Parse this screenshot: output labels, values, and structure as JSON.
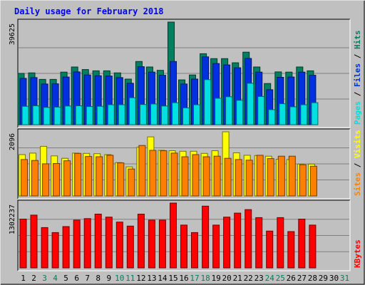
{
  "chart_data": {
    "type": "bar",
    "title": "Daily usage for February 2018",
    "categories": [
      "1",
      "2",
      "3",
      "4",
      "5",
      "6",
      "7",
      "8",
      "9",
      "10",
      "11",
      "12",
      "13",
      "14",
      "15",
      "16",
      "17",
      "18",
      "19",
      "20",
      "21",
      "22",
      "23",
      "24",
      "25",
      "26",
      "27",
      "28",
      "29",
      "30",
      "31"
    ],
    "weekend_days": [
      3,
      4,
      10,
      11,
      17,
      18,
      24,
      25,
      31
    ],
    "panels": [
      {
        "id": "pages_files_hits",
        "max_label": "39625",
        "ylim": [
          0,
          39625
        ],
        "right_label": [
          {
            "text": "Pages",
            "color": "#00e0e0"
          },
          {
            "text": " / ",
            "color": "#000000"
          },
          {
            "text": "Files",
            "color": "#0030e0"
          },
          {
            "text": " / ",
            "color": "#000000"
          },
          {
            "text": "Hits",
            "color": "#008060"
          }
        ],
        "series": [
          {
            "name": "Hits",
            "color": "#008060",
            "values": [
              19800,
              20000,
              17500,
              17500,
              20300,
              22300,
              21300,
              20800,
              20800,
              20000,
              17600,
              24400,
              22300,
              21000,
              39625,
              17300,
              19200,
              27400,
              25500,
              25500,
              23900,
              28000,
              22300,
              15900,
              20400,
              20300,
              22300,
              20800,
              0,
              0,
              0
            ]
          },
          {
            "name": "Files",
            "color": "#0030e0",
            "values": [
              17900,
              18200,
              15700,
              15800,
              18400,
              20400,
              19200,
              18900,
              18800,
              18200,
              16000,
              22400,
              20300,
              19100,
              24400,
              15700,
              17600,
              26200,
              23600,
              23100,
              22000,
              25600,
              20300,
              13500,
              18300,
              18400,
              20300,
              19100,
              0,
              0,
              0
            ]
          },
          {
            "name": "Pages",
            "color": "#00e0e0",
            "values": [
              7100,
              7300,
              6700,
              6800,
              7200,
              7300,
              7000,
              7100,
              7700,
              7700,
              10400,
              7800,
              8000,
              7200,
              8500,
              6500,
              7700,
              17400,
              10200,
              10800,
              9400,
              16000,
              10900,
              5800,
              8100,
              6900,
              7700,
              8500,
              0,
              0,
              0
            ]
          }
        ]
      },
      {
        "id": "sites_visits",
        "max_label": "2096",
        "ylim": [
          0,
          2096
        ],
        "right_label": [
          {
            "text": "Sites",
            "color": "#ff8000"
          },
          {
            "text": " / ",
            "color": "#000000"
          },
          {
            "text": "Visits",
            "color": "#ffff00"
          }
        ],
        "series": [
          {
            "name": "Visits",
            "color": "#ffff00",
            "values": [
              1350,
              1400,
              1620,
              1310,
              1230,
              1400,
              1390,
              1380,
              1350,
              1090,
              950,
              1590,
              1930,
              1490,
              1480,
              1460,
              1460,
              1390,
              1480,
              2096,
              1410,
              1330,
              1320,
              1300,
              1200,
              1190,
              1040,
              1040,
              0,
              0,
              0
            ]
          },
          {
            "name": "Sites",
            "color": "#ff8000",
            "values": [
              1190,
              1160,
              1050,
              1060,
              1150,
              1390,
              1290,
              1280,
              1330,
              1080,
              880,
              1650,
              1490,
              1480,
              1400,
              1280,
              1350,
              1280,
              1300,
              1230,
              1190,
              1170,
              1330,
              1220,
              1300,
              1300,
              1020,
              970,
              0,
              0,
              0
            ]
          }
        ]
      },
      {
        "id": "kbytes",
        "max_label": "1302237",
        "ylim": [
          0,
          1302237
        ],
        "right_label": [
          {
            "text": "KBytes",
            "color": "#ff0000"
          }
        ],
        "series": [
          {
            "name": "KBytes",
            "color": "#ff0000",
            "values": [
              980000,
              1060000,
              810000,
              710000,
              830000,
              960000,
              990000,
              1080000,
              1020000,
              920000,
              840000,
              1080000,
              960000,
              960000,
              1302237,
              860000,
              710000,
              1240000,
              860000,
              1020000,
              1100000,
              1170000,
              1010000,
              740000,
              1010000,
              730000,
              980000,
              860000,
              0,
              0,
              0
            ]
          }
        ]
      }
    ],
    "colors": {
      "background": "#c0c0c0",
      "title_color": "#0000ff",
      "weekday_label": "#000000",
      "weekend_label": "#00805c"
    }
  }
}
